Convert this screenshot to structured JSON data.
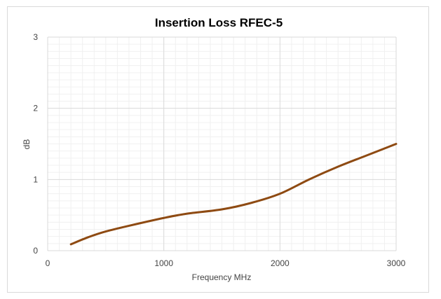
{
  "chart_data": {
    "type": "line",
    "title": "Insertion Loss RFEC-5",
    "xlabel": "Frequency MHz",
    "ylabel": "dB",
    "xlim": [
      0,
      3000
    ],
    "ylim": [
      0,
      3
    ],
    "xticks": [
      0,
      1000,
      2000,
      3000
    ],
    "yticks": [
      0,
      1,
      2,
      3
    ],
    "grid": true,
    "series": [
      {
        "name": "Insertion Loss",
        "color": "#8e4a12",
        "x": [
          200,
          350,
          500,
          700,
          1000,
          1200,
          1500,
          1750,
          2000,
          2250,
          2500,
          2750,
          3000
        ],
        "y": [
          0.09,
          0.19,
          0.27,
          0.35,
          0.46,
          0.52,
          0.58,
          0.67,
          0.8,
          1.0,
          1.18,
          1.34,
          1.5
        ]
      }
    ]
  }
}
